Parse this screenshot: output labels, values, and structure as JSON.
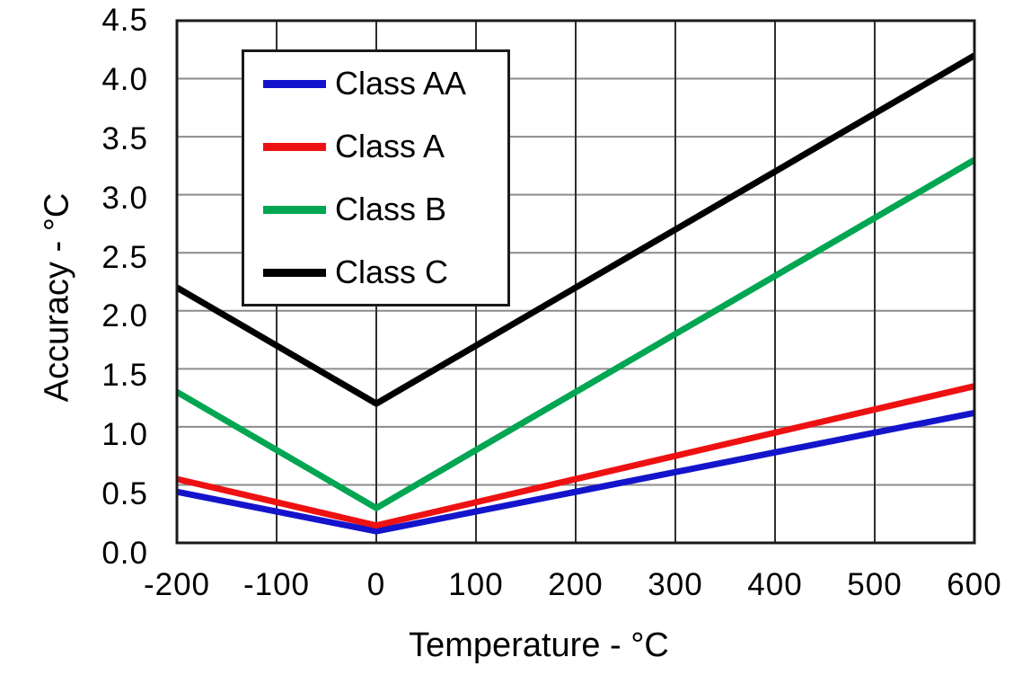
{
  "figure": {
    "background_color": "#ffffff",
    "text_color": "#000000"
  },
  "chart_data": {
    "type": "line",
    "title": "",
    "xlabel": "Temperature - °C",
    "ylabel": "Accuracy - °C",
    "xlim": [
      -200,
      600
    ],
    "ylim": [
      0,
      4.5
    ],
    "grid": true,
    "legend_position": "upper-left-inside",
    "x_ticks": {
      "values": [
        -200,
        -100,
        0,
        100,
        200,
        300,
        400,
        500,
        600
      ],
      "labels": [
        "-200",
        "-100",
        "0",
        "100",
        "200",
        "300",
        "400",
        "500",
        "600"
      ]
    },
    "y_ticks": {
      "values": [
        0,
        0.5,
        1.0,
        1.5,
        2.0,
        2.5,
        3.0,
        3.5,
        4.0,
        4.5
      ],
      "labels": [
        "0.0",
        "0.5",
        "1.0",
        "1.5",
        "2.0",
        "2.5",
        "3.0",
        "3.5",
        "4.0",
        "4.5"
      ]
    },
    "series": [
      {
        "name": "Class AA",
        "color": "#1414CC",
        "points": [
          [
            -200,
            0.44
          ],
          [
            0,
            0.1
          ],
          [
            600,
            1.12
          ]
        ]
      },
      {
        "name": "Class A",
        "color": "#EE1111",
        "points": [
          [
            -200,
            0.55
          ],
          [
            0,
            0.15
          ],
          [
            600,
            1.35
          ]
        ]
      },
      {
        "name": "Class B",
        "color": "#00A651",
        "points": [
          [
            -200,
            1.3
          ],
          [
            0,
            0.3
          ],
          [
            600,
            3.3
          ]
        ]
      },
      {
        "name": "Class C",
        "color": "#000000",
        "points": [
          [
            -200,
            2.2
          ],
          [
            0,
            1.2
          ],
          [
            600,
            4.2
          ]
        ]
      }
    ],
    "styles": {
      "line_width": 7,
      "grid_color_vertical": "#2F2F2F",
      "grid_color_horizontal": "#8C8C8C",
      "grid_width_vertical": 2,
      "grid_width_horizontal": 2,
      "axis_border_color": "#1A1A1A",
      "axis_border_width": 3
    }
  }
}
